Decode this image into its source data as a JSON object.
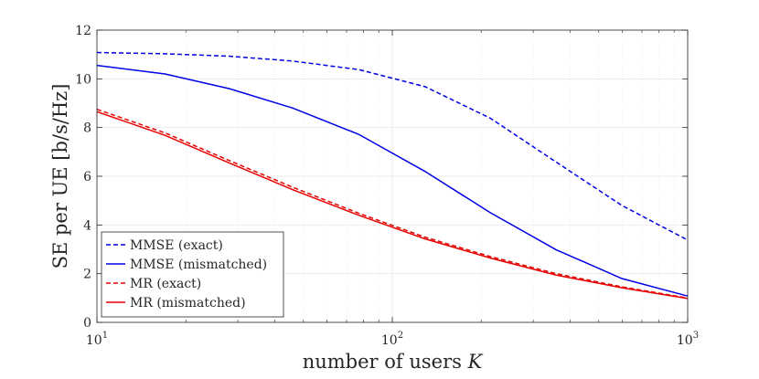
{
  "chart_data": {
    "type": "line",
    "x_scale": "log",
    "xlabel": "number of users",
    "xlabel_var": "K",
    "ylabel": "SE per UE [b/s/Hz]",
    "xlim": [
      10,
      1000
    ],
    "ylim": [
      0,
      12
    ],
    "x_ticks": [
      {
        "value": 10,
        "base": "10",
        "exp": "1"
      },
      {
        "value": 100,
        "base": "10",
        "exp": "2"
      },
      {
        "value": 1000,
        "base": "10",
        "exp": "3"
      }
    ],
    "y_ticks": [
      0,
      2,
      4,
      6,
      8,
      10,
      12
    ],
    "grid": true,
    "legend_position": "bottom-left",
    "x": [
      10,
      17,
      28,
      46,
      77,
      129,
      215,
      359,
      599,
      1000
    ],
    "series": [
      {
        "name": "MMSE (exact)",
        "color": "#0000e6",
        "dash": "dashed",
        "values": [
          11.08,
          11.03,
          10.93,
          10.73,
          10.38,
          9.68,
          8.38,
          6.58,
          4.8,
          3.38
        ]
      },
      {
        "name": "MMSE (mismatched)",
        "color": "#0000e6",
        "dash": "solid",
        "values": [
          10.55,
          10.2,
          9.6,
          8.8,
          7.72,
          6.2,
          4.5,
          2.98,
          1.8,
          1.08
        ]
      },
      {
        "name": "MR (exact)",
        "color": "#e60000",
        "dash": "dashed",
        "values": [
          8.75,
          7.78,
          6.65,
          5.55,
          4.48,
          3.5,
          2.7,
          2.0,
          1.46,
          1.0
        ]
      },
      {
        "name": "MR (mismatched)",
        "color": "#e60000",
        "dash": "solid",
        "values": [
          8.65,
          7.68,
          6.55,
          5.45,
          4.4,
          3.43,
          2.64,
          1.94,
          1.42,
          0.98
        ]
      }
    ]
  }
}
